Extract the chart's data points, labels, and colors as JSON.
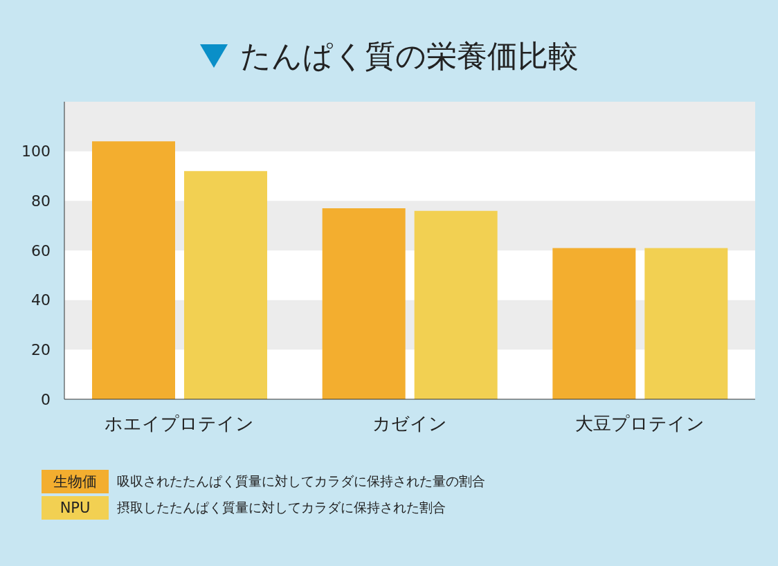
{
  "chart_data": {
    "type": "bar",
    "title": "たんぱく質の栄養価比較",
    "categories": [
      "ホエイプロテイン",
      "カゼイン",
      "大豆プロテイン"
    ],
    "series": [
      {
        "name": "生物価",
        "color": "#f3ae2f",
        "values": [
          104,
          77,
          61
        ]
      },
      {
        "name": "NPU",
        "color": "#f2d052",
        "values": [
          92,
          76,
          61
        ]
      }
    ],
    "ylim": [
      0,
      120
    ],
    "yticks": [
      0,
      20,
      40,
      60,
      80,
      100
    ],
    "bands": [
      {
        "axis": "y",
        "from": 20,
        "to": 40,
        "color": "#ececec"
      },
      {
        "axis": "y",
        "from": 60,
        "to": 80,
        "color": "#ececec"
      },
      {
        "axis": "y",
        "from": 100,
        "to": 120,
        "color": "#ececec"
      }
    ],
    "legend": "bottom left",
    "annotations": [
      "吸収されたたんぱく質量に対してカラダに保持された量の割合",
      "摂取したたんぱく質量に対してカラダに保持された割合"
    ]
  }
}
